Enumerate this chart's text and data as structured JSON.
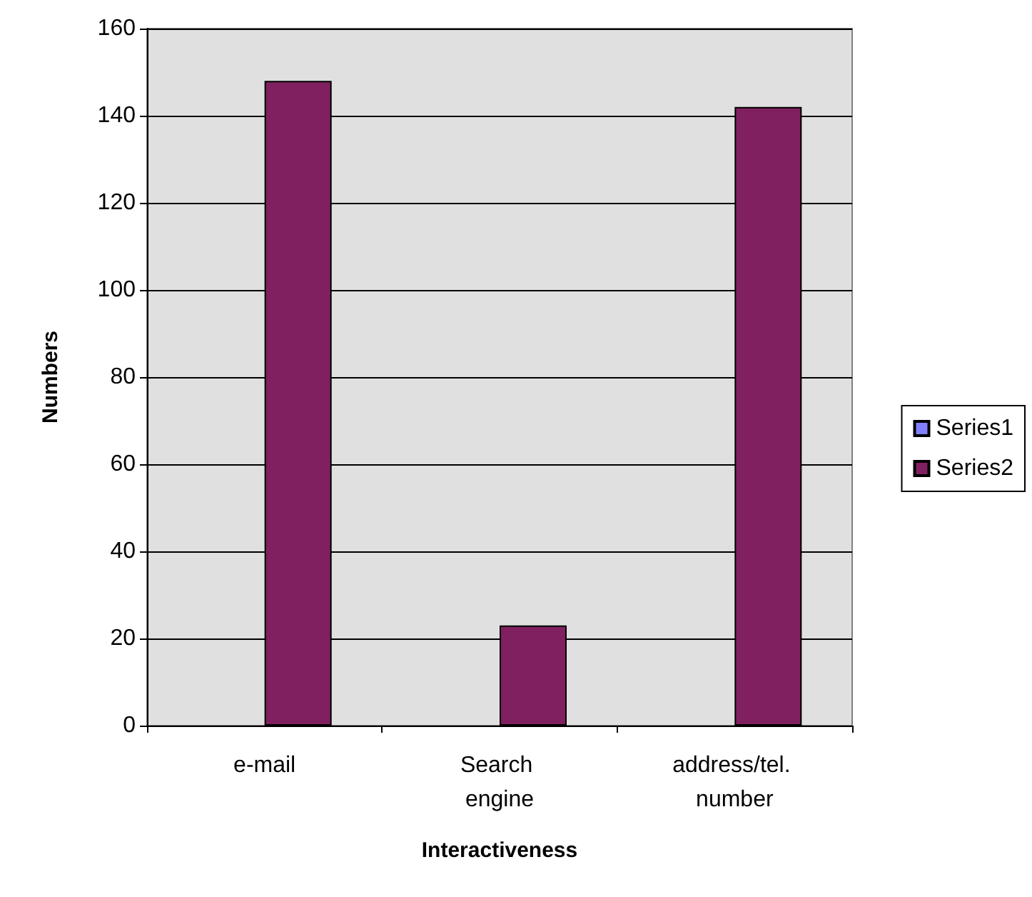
{
  "chart_data": {
    "type": "bar",
    "xlabel": "Interactiveness",
    "ylabel": "Numbers",
    "categories": [
      "e-mail",
      "Search engine",
      "address/tel. number"
    ],
    "series": [
      {
        "name": "Series1",
        "color": "#8080ff",
        "values": [
          null,
          null,
          null
        ]
      },
      {
        "name": "Series2",
        "color": "#802060",
        "values": [
          148,
          23,
          142
        ]
      }
    ],
    "ylim": [
      0,
      160
    ],
    "yticks": [
      0,
      20,
      40,
      60,
      80,
      100,
      120,
      140,
      160
    ],
    "grid": "y",
    "legend": "right"
  }
}
